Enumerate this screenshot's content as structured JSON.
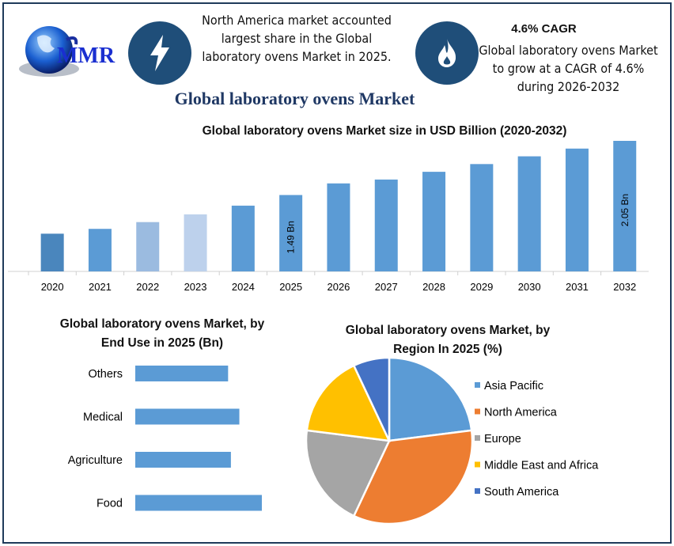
{
  "logo": {
    "text": "MMR"
  },
  "header": {
    "fact1": [
      "North America market accounted",
      "largest share in the Global",
      "laboratory ovens Market in 2025."
    ],
    "fact1_icon": "lightning-bolt-icon",
    "fact2_heading": "4.6% CAGR",
    "fact2": [
      "Global laboratory ovens Market",
      "to grow at a CAGR of 4.6%",
      "during 2026-2032"
    ],
    "fact2_icon": "flame-icon",
    "title": "Global laboratory ovens Market"
  },
  "colors": {
    "navy": "#1f4e79",
    "title": "#1f3864",
    "bar": "#5b9bd5"
  },
  "chart_data": [
    {
      "type": "bar",
      "title": "Global laboratory ovens Market size in USD Billion (2020-2032)",
      "categories": [
        "2020",
        "2021",
        "2022",
        "2023",
        "2024",
        "2025",
        "2026",
        "2027",
        "2028",
        "2029",
        "2030",
        "2031",
        "2032"
      ],
      "values": [
        1.09,
        1.14,
        1.21,
        1.29,
        1.38,
        1.49,
        1.61,
        1.65,
        1.73,
        1.81,
        1.89,
        1.97,
        2.05
      ],
      "colors": [
        "#4a86bd",
        "#5b9bd5",
        "#9bbbe0",
        "#bdd1ec",
        "#5b9bd5",
        "#5b9bd5",
        "#5b9bd5",
        "#5b9bd5",
        "#5b9bd5",
        "#5b9bd5",
        "#5b9bd5",
        "#5b9bd5",
        "#5b9bd5"
      ],
      "data_labels": {
        "2025": "1.49 Bn",
        "2032": "2.05 Bn"
      },
      "ylim": [
        0.7,
        2.1
      ],
      "grid": false,
      "xlabel": "",
      "ylabel": ""
    },
    {
      "type": "bar",
      "orientation": "horizontal",
      "title": [
        "Global laboratory ovens Market, by",
        "End Use in 2025 (Bn)"
      ],
      "categories": [
        "Others",
        "Medical",
        "Agriculture",
        "Food"
      ],
      "values": [
        0.33,
        0.37,
        0.34,
        0.45
      ],
      "color": "#5b9bd5",
      "grid": false
    },
    {
      "type": "pie",
      "title": [
        "Global laboratory ovens Market, by",
        "Region In 2025 (%)"
      ],
      "categories": [
        "Asia Pacific",
        "North America",
        "Europe",
        "Middle East and Africa",
        "South America"
      ],
      "values": [
        23,
        34,
        20,
        16,
        7
      ],
      "colors": [
        "#5b9bd5",
        "#ed7d31",
        "#a5a5a5",
        "#ffc000",
        "#4472c4"
      ],
      "legend": "right"
    }
  ]
}
